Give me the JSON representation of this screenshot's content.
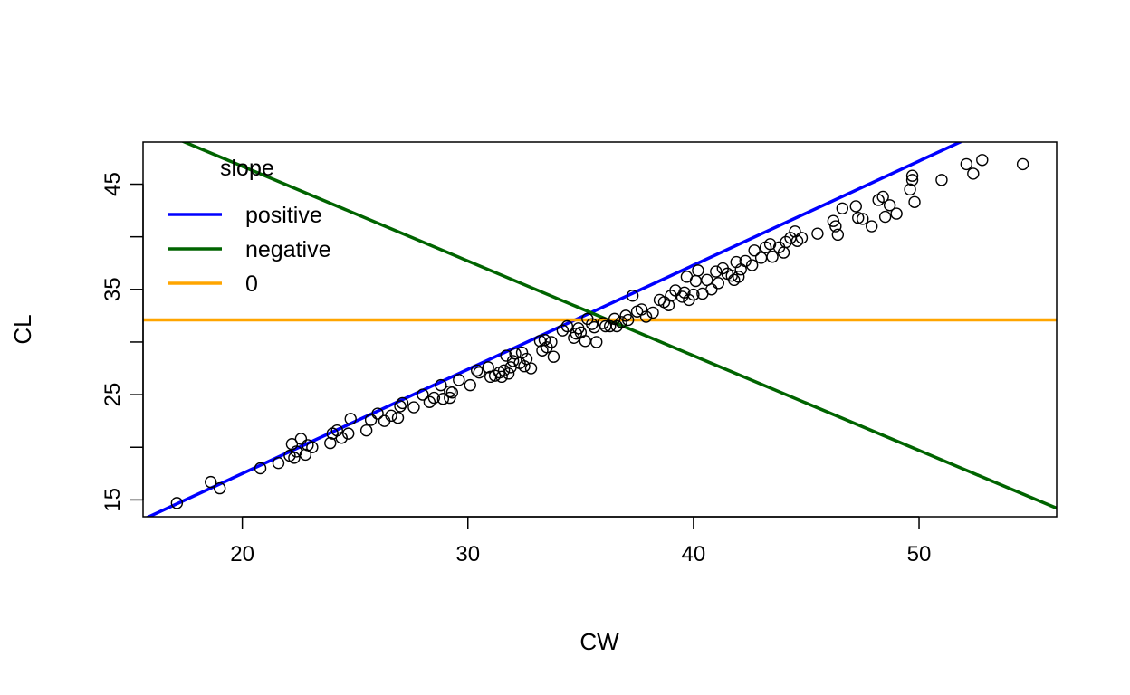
{
  "chart_data": {
    "type": "scatter",
    "title": "",
    "xlabel": "CW",
    "ylabel": "CL",
    "xlim": [
      15.6,
      56.1
    ],
    "ylim": [
      13.4,
      49.0
    ],
    "x_ticks": [
      20,
      30,
      40,
      50
    ],
    "y_ticks": [
      15,
      25,
      35,
      45
    ],
    "y_minor_ticks": [
      20,
      30,
      40
    ],
    "grid": false,
    "legend": {
      "title": "slope",
      "placement": "top-left",
      "entries": [
        {
          "label": "positive",
          "color": "#0000ff"
        },
        {
          "label": "negative",
          "color": "#006400"
        },
        {
          "label": "0",
          "color": "#ffa500"
        }
      ]
    },
    "lines": [
      {
        "name": "positive",
        "color": "#0000ff",
        "intercept": -2.3,
        "slope": 0.99
      },
      {
        "name": "negative",
        "color": "#006400",
        "intercept": 64.7,
        "slope": -0.9
      },
      {
        "name": "0",
        "color": "#ffa500",
        "intercept": 32.1,
        "slope": 0
      }
    ],
    "points": [
      [
        17.1,
        14.7
      ],
      [
        18.6,
        16.7
      ],
      [
        19.0,
        16.1
      ],
      [
        20.8,
        18.0
      ],
      [
        21.6,
        18.5
      ],
      [
        22.1,
        19.2
      ],
      [
        22.2,
        20.3
      ],
      [
        22.3,
        19.0
      ],
      [
        22.4,
        19.6
      ],
      [
        22.6,
        20.8
      ],
      [
        22.8,
        19.3
      ],
      [
        22.9,
        20.2
      ],
      [
        23.1,
        20.0
      ],
      [
        23.9,
        20.4
      ],
      [
        24.0,
        21.3
      ],
      [
        24.2,
        21.6
      ],
      [
        24.4,
        20.9
      ],
      [
        24.7,
        21.3
      ],
      [
        24.8,
        22.7
      ],
      [
        25.5,
        21.6
      ],
      [
        25.7,
        22.6
      ],
      [
        26.0,
        23.2
      ],
      [
        26.3,
        22.5
      ],
      [
        26.6,
        23.0
      ],
      [
        26.9,
        22.8
      ],
      [
        27.0,
        23.9
      ],
      [
        27.1,
        24.2
      ],
      [
        27.6,
        23.8
      ],
      [
        28.0,
        25.0
      ],
      [
        28.3,
        24.3
      ],
      [
        28.5,
        24.7
      ],
      [
        28.8,
        25.9
      ],
      [
        28.9,
        24.6
      ],
      [
        29.2,
        25.3
      ],
      [
        29.2,
        24.7
      ],
      [
        29.3,
        25.2
      ],
      [
        29.6,
        26.4
      ],
      [
        30.1,
        25.9
      ],
      [
        30.4,
        27.3
      ],
      [
        30.5,
        27.1
      ],
      [
        30.9,
        27.6
      ],
      [
        31.0,
        26.7
      ],
      [
        31.2,
        26.8
      ],
      [
        31.4,
        27.1
      ],
      [
        31.5,
        26.7
      ],
      [
        31.6,
        27.3
      ],
      [
        31.7,
        28.7
      ],
      [
        31.8,
        27.0
      ],
      [
        31.9,
        27.6
      ],
      [
        32.0,
        28.2
      ],
      [
        32.1,
        28.9
      ],
      [
        32.3,
        28.0
      ],
      [
        32.4,
        29.0
      ],
      [
        32.5,
        27.7
      ],
      [
        32.6,
        28.4
      ],
      [
        32.8,
        27.5
      ],
      [
        33.2,
        30.1
      ],
      [
        33.3,
        29.2
      ],
      [
        33.4,
        30.2
      ],
      [
        33.5,
        29.5
      ],
      [
        33.7,
        30.0
      ],
      [
        33.8,
        28.6
      ],
      [
        34.2,
        31.1
      ],
      [
        34.4,
        31.5
      ],
      [
        34.7,
        30.4
      ],
      [
        34.8,
        30.8
      ],
      [
        34.9,
        31.3
      ],
      [
        35.0,
        30.9
      ],
      [
        35.2,
        30.1
      ],
      [
        35.3,
        32.2
      ],
      [
        35.5,
        31.7
      ],
      [
        35.6,
        31.4
      ],
      [
        35.7,
        30.0
      ],
      [
        36.0,
        31.8
      ],
      [
        36.1,
        31.5
      ],
      [
        36.3,
        31.5
      ],
      [
        36.5,
        32.2
      ],
      [
        36.6,
        31.5
      ],
      [
        36.8,
        31.9
      ],
      [
        37.0,
        32.5
      ],
      [
        37.1,
        32.1
      ],
      [
        37.3,
        34.4
      ],
      [
        37.5,
        32.9
      ],
      [
        37.7,
        33.1
      ],
      [
        37.9,
        32.4
      ],
      [
        38.2,
        32.8
      ],
      [
        38.5,
        34.0
      ],
      [
        38.7,
        33.8
      ],
      [
        38.9,
        33.5
      ],
      [
        39.0,
        34.4
      ],
      [
        39.2,
        34.9
      ],
      [
        39.5,
        34.3
      ],
      [
        39.6,
        34.7
      ],
      [
        39.7,
        36.2
      ],
      [
        39.8,
        34.0
      ],
      [
        40.0,
        34.5
      ],
      [
        40.1,
        35.8
      ],
      [
        40.2,
        36.8
      ],
      [
        40.4,
        34.6
      ],
      [
        40.6,
        35.9
      ],
      [
        40.8,
        35.0
      ],
      [
        41.0,
        36.7
      ],
      [
        41.1,
        35.6
      ],
      [
        41.3,
        37.0
      ],
      [
        41.5,
        36.5
      ],
      [
        41.7,
        36.3
      ],
      [
        41.8,
        35.9
      ],
      [
        41.9,
        37.6
      ],
      [
        42.0,
        36.2
      ],
      [
        42.1,
        36.9
      ],
      [
        42.3,
        37.7
      ],
      [
        42.6,
        37.3
      ],
      [
        42.7,
        38.7
      ],
      [
        43.0,
        38.0
      ],
      [
        43.2,
        39.0
      ],
      [
        43.4,
        39.3
      ],
      [
        43.5,
        38.1
      ],
      [
        43.8,
        39.0
      ],
      [
        44.0,
        38.5
      ],
      [
        44.1,
        39.5
      ],
      [
        44.3,
        39.9
      ],
      [
        44.5,
        40.5
      ],
      [
        44.6,
        39.6
      ],
      [
        44.8,
        39.9
      ],
      [
        45.5,
        40.3
      ],
      [
        46.2,
        41.5
      ],
      [
        46.3,
        41.0
      ],
      [
        46.4,
        40.2
      ],
      [
        46.6,
        42.7
      ],
      [
        47.2,
        42.9
      ],
      [
        47.3,
        41.8
      ],
      [
        47.5,
        41.7
      ],
      [
        47.9,
        41.0
      ],
      [
        48.2,
        43.5
      ],
      [
        48.4,
        43.8
      ],
      [
        48.5,
        41.9
      ],
      [
        48.7,
        43.0
      ],
      [
        49.0,
        42.2
      ],
      [
        49.6,
        44.5
      ],
      [
        49.7,
        45.4
      ],
      [
        49.7,
        45.8
      ],
      [
        49.8,
        43.3
      ],
      [
        51.0,
        45.4
      ],
      [
        52.1,
        46.9
      ],
      [
        52.4,
        46.0
      ],
      [
        52.8,
        47.3
      ],
      [
        54.6,
        46.9
      ]
    ]
  }
}
